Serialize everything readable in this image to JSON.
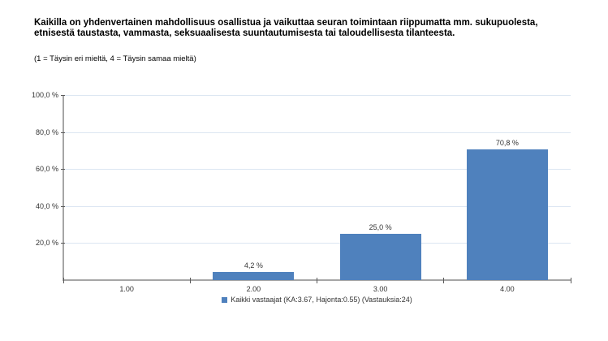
{
  "title": "Kaikilla on yhdenvertainen mahdollisuus osallistua ja vaikuttaa seuran toimintaan riippumatta mm. sukupuolesta, etnisestä taustasta, vammasta, seksuaalisesta suuntautumisesta tai taloudellisesta tilanteesta.",
  "subtitle": "(1 = Täysin eri mieltä, 4 = Täysin samaa mieltä)",
  "chart_data": {
    "type": "bar",
    "categories": [
      "1.00",
      "2.00",
      "3.00",
      "4.00"
    ],
    "values": [
      0,
      4.2,
      25.0,
      70.8
    ],
    "value_labels": [
      "",
      "4,2 %",
      "25,0 %",
      "70,8 %"
    ],
    "ytick_values": [
      20,
      40,
      60,
      80,
      100
    ],
    "ytick_labels": [
      "20,0 %",
      "40,0 %",
      "60,0 %",
      "80,0 %",
      "100,0 %"
    ],
    "ylim": [
      0,
      100
    ],
    "xlabel": "",
    "ylabel": "",
    "grid": true,
    "legend": "Kaikki vastaajat (KA:3.67, Hajonta:0.55) (Vastauksia:24)",
    "legend_position": "bottom",
    "colors": {
      "bar": "#4f81bd",
      "grid": "#dce6f2",
      "axis": "#a6a6a6",
      "tick": "#595959"
    }
  }
}
